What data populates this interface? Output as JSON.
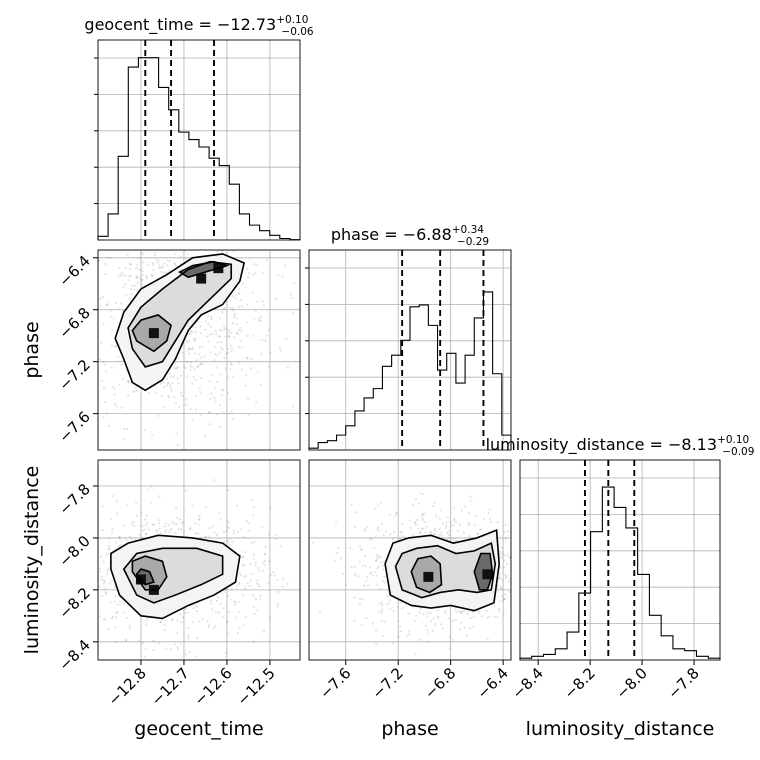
{
  "chart_data": {
    "type": "corner",
    "parameters": [
      {
        "name": "geocent_time",
        "median": -12.73,
        "plus": 0.1,
        "minus": 0.06,
        "range": [
          -12.9,
          -12.43
        ],
        "ticks": [
          -12.8,
          -12.7,
          -12.6,
          -12.5
        ],
        "tick_labels": [
          "−12.8",
          "−12.7",
          "−12.6",
          "−12.5"
        ],
        "quantiles": [
          -12.79,
          -12.73,
          -12.63
        ],
        "hist_bins": [
          0.02,
          0.14,
          0.45,
          0.93,
          0.98,
          0.98,
          0.82,
          0.7,
          0.58,
          0.54,
          0.5,
          0.44,
          0.4,
          0.3,
          0.14,
          0.08,
          0.05,
          0.025,
          0.008,
          0.002
        ]
      },
      {
        "name": "phase",
        "median": -6.88,
        "plus": 0.34,
        "minus": 0.29,
        "range": [
          -7.88,
          -6.34
        ],
        "ticks": [
          -7.6,
          -7.2,
          -6.8,
          -6.4
        ],
        "tick_labels": [
          "−7.6",
          "−7.2",
          "−6.8",
          "−6.4"
        ],
        "quantiles": [
          -7.17,
          -6.88,
          -6.55
        ],
        "hist_bins": [
          0.01,
          0.04,
          0.05,
          0.08,
          0.13,
          0.21,
          0.28,
          0.33,
          0.45,
          0.51,
          0.59,
          0.77,
          0.78,
          0.67,
          0.43,
          0.52,
          0.36,
          0.51,
          0.71,
          0.85,
          0.41,
          0.08
        ]
      },
      {
        "name": "luminosity_distance",
        "median": -8.13,
        "plus": 0.1,
        "minus": 0.09,
        "range": [
          -8.47,
          -7.7
        ],
        "ticks": [
          -8.4,
          -8.2,
          -8.0,
          -7.8
        ],
        "tick_labels": [
          "−8.4",
          "−8.2",
          "−8.0",
          "−7.8"
        ],
        "quantiles": [
          -8.22,
          -8.13,
          -8.03
        ],
        "hist_bins": [
          0.01,
          0.02,
          0.03,
          0.06,
          0.15,
          0.36,
          0.69,
          0.93,
          0.82,
          0.71,
          0.46,
          0.24,
          0.13,
          0.06,
          0.05,
          0.02,
          0.01
        ]
      }
    ],
    "pairs": [
      {
        "x": "geocent_time",
        "y": "phase",
        "density_peaks": [
          {
            "x": -12.77,
            "y": -6.98
          },
          {
            "x": -12.62,
            "y": -6.48
          },
          {
            "x": -12.66,
            "y": -6.56
          }
        ],
        "contour_levels": [
          [
            [
              -12.84,
              -7.18
            ],
            [
              -12.82,
              -7.36
            ],
            [
              -12.79,
              -7.42
            ],
            [
              -12.75,
              -7.34
            ],
            [
              -12.72,
              -7.18
            ],
            [
              -12.69,
              -6.96
            ],
            [
              -12.66,
              -6.84
            ],
            [
              -12.61,
              -6.76
            ],
            [
              -12.57,
              -6.58
            ],
            [
              -12.56,
              -6.44
            ],
            [
              -12.61,
              -6.37
            ],
            [
              -12.68,
              -6.4
            ],
            [
              -12.74,
              -6.53
            ],
            [
              -12.8,
              -6.64
            ],
            [
              -12.84,
              -6.82
            ],
            [
              -12.86,
              -7.02
            ]
          ],
          [
            [
              -12.82,
              -7.1
            ],
            [
              -12.79,
              -7.24
            ],
            [
              -12.75,
              -7.2
            ],
            [
              -12.72,
              -7.04
            ],
            [
              -12.69,
              -6.88
            ],
            [
              -12.64,
              -6.72
            ],
            [
              -12.59,
              -6.56
            ],
            [
              -12.59,
              -6.45
            ],
            [
              -12.64,
              -6.43
            ],
            [
              -12.69,
              -6.49
            ],
            [
              -12.75,
              -6.64
            ],
            [
              -12.8,
              -6.78
            ],
            [
              -12.83,
              -6.94
            ]
          ],
          [
            [
              -12.81,
              -7.04
            ],
            [
              -12.77,
              -7.12
            ],
            [
              -12.74,
              -7.04
            ],
            [
              -12.73,
              -6.92
            ],
            [
              -12.76,
              -6.84
            ],
            [
              -12.8,
              -6.88
            ],
            [
              -12.82,
              -6.96
            ]
          ],
          [
            [
              -12.69,
              -6.55
            ],
            [
              -12.64,
              -6.5
            ],
            [
              -12.6,
              -6.46
            ],
            [
              -12.63,
              -6.43
            ],
            [
              -12.68,
              -6.46
            ],
            [
              -12.71,
              -6.51
            ]
          ]
        ]
      },
      {
        "x": "geocent_time",
        "y": "luminosity_distance",
        "density_peaks": [
          {
            "x": -12.8,
            "y": -8.16
          },
          {
            "x": -12.77,
            "y": -8.2
          }
        ],
        "contour_levels": [
          [
            [
              -12.87,
              -8.12
            ],
            [
              -12.85,
              -8.22
            ],
            [
              -12.8,
              -8.3
            ],
            [
              -12.75,
              -8.31
            ],
            [
              -12.69,
              -8.26
            ],
            [
              -12.63,
              -8.22
            ],
            [
              -12.58,
              -8.17
            ],
            [
              -12.57,
              -8.07
            ],
            [
              -12.61,
              -8.02
            ],
            [
              -12.68,
              -8.0
            ],
            [
              -12.76,
              -7.99
            ],
            [
              -12.83,
              -8.02
            ],
            [
              -12.87,
              -8.06
            ]
          ],
          [
            [
              -12.84,
              -8.12
            ],
            [
              -12.81,
              -8.22
            ],
            [
              -12.77,
              -8.25
            ],
            [
              -12.72,
              -8.22
            ],
            [
              -12.66,
              -8.18
            ],
            [
              -12.61,
              -8.14
            ],
            [
              -12.61,
              -8.07
            ],
            [
              -12.67,
              -8.04
            ],
            [
              -12.75,
              -8.04
            ],
            [
              -12.81,
              -8.06
            ]
          ],
          [
            [
              -12.82,
              -8.13
            ],
            [
              -12.79,
              -8.2
            ],
            [
              -12.76,
              -8.2
            ],
            [
              -12.74,
              -8.15
            ],
            [
              -12.75,
              -8.09
            ],
            [
              -12.79,
              -8.07
            ],
            [
              -12.82,
              -8.09
            ]
          ],
          [
            [
              -12.81,
              -8.14
            ],
            [
              -12.79,
              -8.18
            ],
            [
              -12.77,
              -8.17
            ],
            [
              -12.78,
              -8.13
            ],
            [
              -12.8,
              -8.12
            ]
          ]
        ]
      },
      {
        "x": "phase",
        "y": "luminosity_distance",
        "density_peaks": [
          {
            "x": -6.97,
            "y": -8.15
          },
          {
            "x": -6.52,
            "y": -8.14
          }
        ],
        "contour_levels": [
          [
            [
              -7.3,
              -8.1
            ],
            [
              -7.26,
              -8.22
            ],
            [
              -7.1,
              -8.26
            ],
            [
              -6.95,
              -8.27
            ],
            [
              -6.8,
              -8.26
            ],
            [
              -6.62,
              -8.28
            ],
            [
              -6.47,
              -8.25
            ],
            [
              -6.43,
              -8.1
            ],
            [
              -6.45,
              -7.97
            ],
            [
              -6.6,
              -8.0
            ],
            [
              -6.78,
              -8.02
            ],
            [
              -6.95,
              -7.99
            ],
            [
              -7.12,
              -8.0
            ],
            [
              -7.24,
              -8.02
            ]
          ],
          [
            [
              -7.22,
              -8.11
            ],
            [
              -7.17,
              -8.2
            ],
            [
              -7.02,
              -8.23
            ],
            [
              -6.88,
              -8.21
            ],
            [
              -6.74,
              -8.2
            ],
            [
              -6.6,
              -8.21
            ],
            [
              -6.49,
              -8.2
            ],
            [
              -6.46,
              -8.1
            ],
            [
              -6.49,
              -8.02
            ],
            [
              -6.62,
              -8.05
            ],
            [
              -6.76,
              -8.06
            ],
            [
              -6.9,
              -8.03
            ],
            [
              -7.06,
              -8.04
            ],
            [
              -7.17,
              -8.06
            ]
          ],
          [
            [
              -7.1,
              -8.13
            ],
            [
              -7.06,
              -8.19
            ],
            [
              -6.96,
              -8.21
            ],
            [
              -6.87,
              -8.18
            ],
            [
              -6.88,
              -8.1
            ],
            [
              -6.95,
              -8.07
            ],
            [
              -7.05,
              -8.08
            ]
          ],
          [
            [
              -6.62,
              -8.13
            ],
            [
              -6.58,
              -8.2
            ],
            [
              -6.52,
              -8.2
            ],
            [
              -6.48,
              -8.14
            ],
            [
              -6.5,
              -8.06
            ],
            [
              -6.57,
              -8.06
            ]
          ]
        ]
      }
    ],
    "grid": true
  }
}
